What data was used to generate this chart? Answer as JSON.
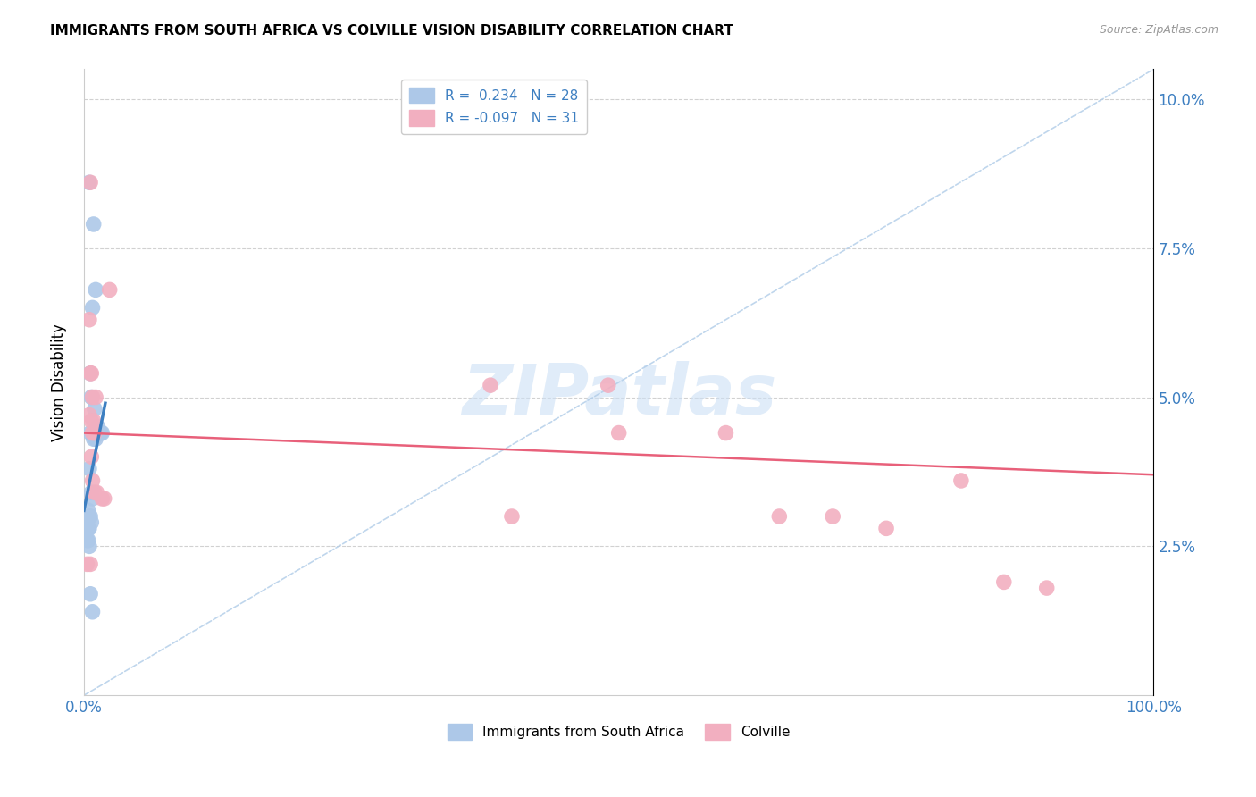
{
  "title": "IMMIGRANTS FROM SOUTH AFRICA VS COLVILLE VISION DISABILITY CORRELATION CHART",
  "source": "Source: ZipAtlas.com",
  "ylabel": "Vision Disability",
  "xlim": [
    0,
    1.0
  ],
  "ylim": [
    0,
    0.105
  ],
  "yticks": [
    0.025,
    0.05,
    0.075,
    0.1
  ],
  "ytick_labels": [
    "2.5%",
    "5.0%",
    "7.5%",
    "10.0%"
  ],
  "xticks": [
    0.0,
    0.2,
    0.4,
    0.6,
    0.8,
    1.0
  ],
  "xtick_labels": [
    "0.0%",
    "",
    "",
    "",
    "",
    "100.0%"
  ],
  "watermark": "ZIPatlas",
  "blue_color": "#adc8e8",
  "pink_color": "#f2afc0",
  "blue_line_color": "#3d7fc1",
  "pink_line_color": "#e8607a",
  "dashed_line_color": "#b0cce8",
  "blue_points": [
    [
      0.005,
      0.086
    ],
    [
      0.009,
      0.079
    ],
    [
      0.011,
      0.068
    ],
    [
      0.008,
      0.065
    ],
    [
      0.006,
      0.054
    ],
    [
      0.007,
      0.05
    ],
    [
      0.01,
      0.048
    ],
    [
      0.006,
      0.044
    ],
    [
      0.009,
      0.043
    ],
    [
      0.011,
      0.043
    ],
    [
      0.013,
      0.045
    ],
    [
      0.016,
      0.044
    ],
    [
      0.017,
      0.044
    ],
    [
      0.005,
      0.038
    ],
    [
      0.007,
      0.034
    ],
    [
      0.008,
      0.033
    ],
    [
      0.004,
      0.031
    ],
    [
      0.005,
      0.03
    ],
    [
      0.006,
      0.03
    ],
    [
      0.007,
      0.029
    ],
    [
      0.003,
      0.028
    ],
    [
      0.004,
      0.028
    ],
    [
      0.005,
      0.028
    ],
    [
      0.003,
      0.026
    ],
    [
      0.004,
      0.026
    ],
    [
      0.005,
      0.025
    ],
    [
      0.006,
      0.017
    ],
    [
      0.008,
      0.014
    ]
  ],
  "pink_points": [
    [
      0.006,
      0.086
    ],
    [
      0.024,
      0.068
    ],
    [
      0.005,
      0.063
    ],
    [
      0.006,
      0.054
    ],
    [
      0.007,
      0.054
    ],
    [
      0.008,
      0.05
    ],
    [
      0.011,
      0.05
    ],
    [
      0.005,
      0.047
    ],
    [
      0.007,
      0.046
    ],
    [
      0.009,
      0.046
    ],
    [
      0.008,
      0.044
    ],
    [
      0.01,
      0.044
    ],
    [
      0.38,
      0.052
    ],
    [
      0.49,
      0.052
    ],
    [
      0.5,
      0.044
    ],
    [
      0.6,
      0.044
    ],
    [
      0.007,
      0.04
    ],
    [
      0.008,
      0.036
    ],
    [
      0.01,
      0.034
    ],
    [
      0.012,
      0.034
    ],
    [
      0.017,
      0.033
    ],
    [
      0.019,
      0.033
    ],
    [
      0.003,
      0.022
    ],
    [
      0.006,
      0.022
    ],
    [
      0.65,
      0.03
    ],
    [
      0.7,
      0.03
    ],
    [
      0.75,
      0.028
    ],
    [
      0.82,
      0.036
    ],
    [
      0.86,
      0.019
    ],
    [
      0.4,
      0.03
    ],
    [
      0.9,
      0.018
    ]
  ],
  "blue_trend_x": [
    0.0,
    0.02
  ],
  "blue_trend_y": [
    0.031,
    0.049
  ],
  "pink_trend_x": [
    0.0,
    1.0
  ],
  "pink_trend_y": [
    0.044,
    0.037
  ],
  "diag_line_x": [
    0.0,
    1.0
  ],
  "diag_line_y": [
    0.0,
    0.105
  ]
}
